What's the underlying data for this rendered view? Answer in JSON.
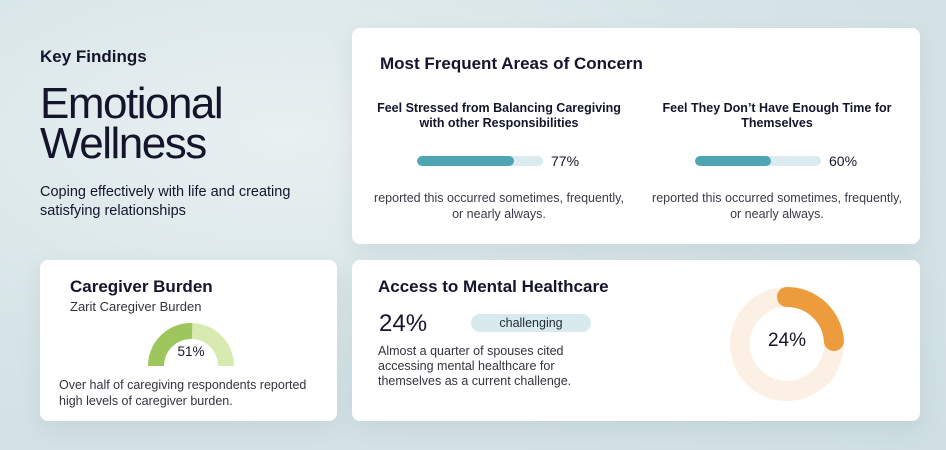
{
  "intro": {
    "kicker": "Key Findings",
    "headline_line1": "Emotional",
    "headline_line2": "Wellness",
    "subtext": "Coping effectively with life and creating satisfying relationships"
  },
  "concern": {
    "title": "Most Frequent Areas of Concern",
    "metrics": [
      {
        "label": "Feel Stressed from Balancing Caregiving with other Responsibilities",
        "percent_label": "77%",
        "value": 77,
        "note": "reported this occurred sometimes, frequently, or nearly always."
      },
      {
        "label": "Feel They Don’t Have Enough Time for Themselves",
        "percent_label": "60%",
        "value": 60,
        "note": "reported this occurred sometimes, frequently, or nearly always."
      }
    ],
    "colors": {
      "bar_fill": "#4ea6b5",
      "bar_track": "#dcebef"
    }
  },
  "burden": {
    "title": "Caregiver Burden",
    "subtitle": "Zarit Caregiver Burden",
    "gauge_label": "51%",
    "value": 51,
    "note": "Over half of caregiving respondents reported high levels of caregiver burden.",
    "colors": {
      "fill": "#9dc75c",
      "track": "#d7ebb0"
    }
  },
  "access": {
    "title": "Access to Mental Healthcare",
    "big_value": "24%",
    "pill": "challenging",
    "note": "Almost a quarter of spouses cited accessing mental healthcare for themselves as a current challenge.",
    "donut_label": "24%",
    "value": 24,
    "colors": {
      "fill": "#ec9b3d",
      "track": "#fcefe3"
    }
  }
}
